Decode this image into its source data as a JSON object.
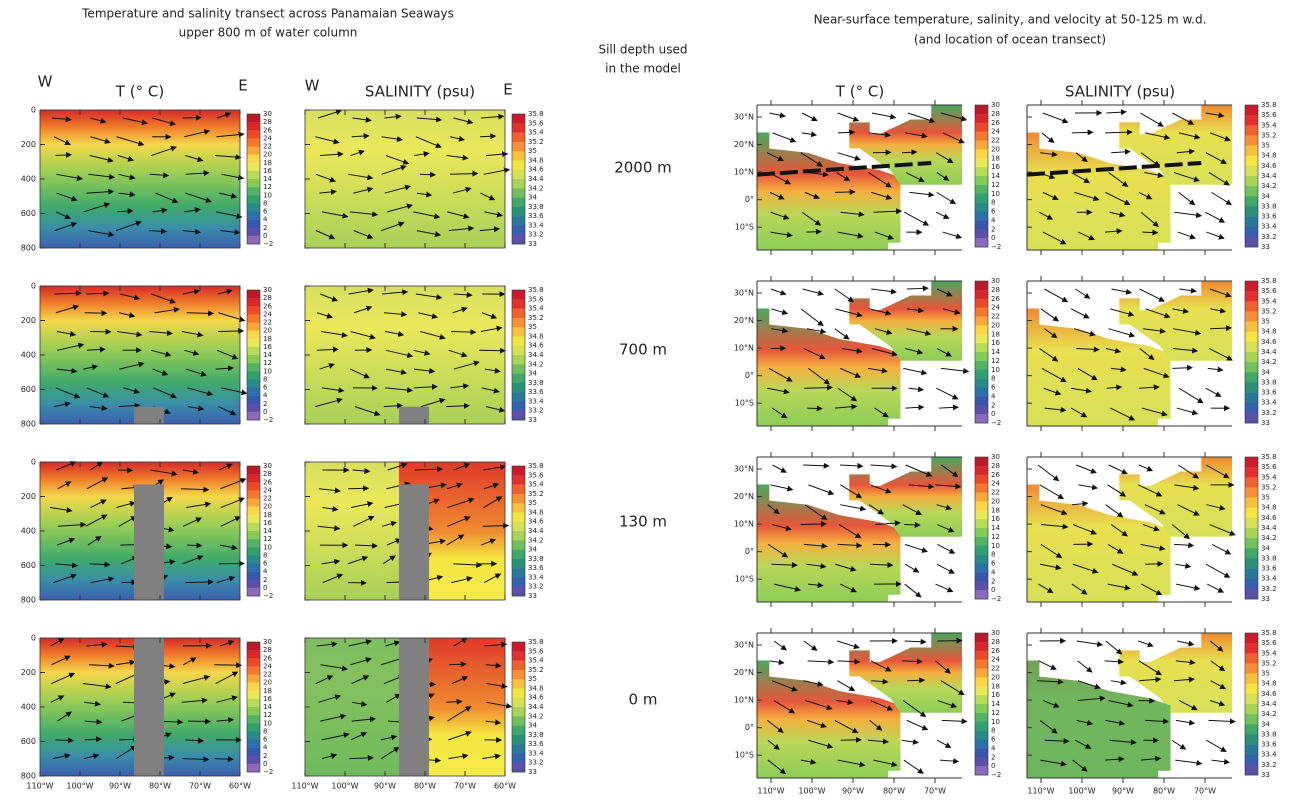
{
  "titles": {
    "left": [
      "Temperature and salinity transect across Panamaian Seaways",
      "upper 800 m of water column"
    ],
    "middle": [
      "Sill depth used",
      "in the model"
    ],
    "right": [
      "Near-surface temperature, salinity, and velocity at 50-125 m w.d.",
      "(and location of ocean transect)"
    ]
  },
  "column_headers": {
    "temperature": "T  (°  C)",
    "salinity": "SALINITY  (psu)",
    "west": "W",
    "east": "E"
  },
  "sill_depths": [
    "2000 m",
    "700 m",
    "130 m",
    "0 m"
  ],
  "depth_ticks": [
    "0",
    "200",
    "400",
    "600",
    "800"
  ],
  "lon_ticks": [
    "110°W",
    "100°W",
    "90°W",
    "80°W",
    "70°W",
    "60°W"
  ],
  "map_lon_ticks": [
    "110°W",
    "100°W",
    "90°W",
    "80°W",
    "70°W"
  ],
  "lat_ticks": [
    "30°N",
    "20°N",
    "10°N",
    "0°",
    "10°S"
  ],
  "temp_colorbar": [
    "30",
    "28",
    "26",
    "24",
    "22",
    "20",
    "18",
    "16",
    "14",
    "12",
    "10",
    "8",
    "6",
    "4",
    "2",
    "0",
    "−2"
  ],
  "sal_colorbar": [
    "35.8",
    "35.6",
    "35.4",
    "35.2",
    "35",
    "34.8",
    "34.6",
    "34.4",
    "34.2",
    "34",
    "33.8",
    "33.6",
    "33.4",
    "33.2",
    "33"
  ]
}
